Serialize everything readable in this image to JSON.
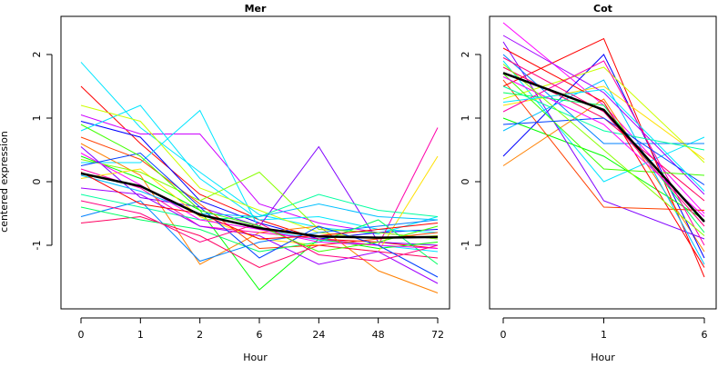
{
  "figure": {
    "ylabel": "centered expression"
  },
  "chart_data": [
    {
      "type": "line",
      "title": "Mer",
      "xlabel": "Hour",
      "ylabel": "centered expression",
      "categories": [
        "0",
        "1",
        "2",
        "6",
        "24",
        "48",
        "72"
      ],
      "yticks": [
        -1,
        0,
        1,
        2
      ],
      "ylim": [
        -2.0,
        2.6
      ],
      "mean_series": {
        "color": "#000000",
        "values": [
          0.13,
          -0.07,
          -0.52,
          -0.73,
          -0.86,
          -0.88,
          -0.87
        ]
      },
      "series": [
        {
          "color": "#00e5ff",
          "values": [
            1.88,
            0.85,
            0.15,
            -0.52,
            -0.72,
            -0.82,
            -0.55
          ]
        },
        {
          "color": "#ff0000",
          "values": [
            1.5,
            0.6,
            -0.2,
            -0.6,
            -0.9,
            -0.95,
            -1.05
          ]
        },
        {
          "color": "#cc00ff",
          "values": [
            1.05,
            0.75,
            0.75,
            -0.35,
            -0.65,
            -0.8,
            -0.9
          ]
        },
        {
          "color": "#0000ff",
          "values": [
            0.95,
            0.7,
            -0.3,
            -0.65,
            -0.9,
            -0.8,
            -0.75
          ]
        },
        {
          "color": "#00e5ff",
          "values": [
            0.8,
            1.2,
            0.05,
            -0.6,
            -0.55,
            -0.75,
            -0.8
          ]
        },
        {
          "color": "#00e5ff",
          "values": [
            0.3,
            0.3,
            1.12,
            -0.75,
            -0.92,
            -1.0,
            -1.1
          ]
        },
        {
          "color": "#ccff00",
          "values": [
            1.2,
            0.95,
            -0.1,
            -0.45,
            -0.8,
            -0.9,
            -0.85
          ]
        },
        {
          "color": "#8000ff",
          "values": [
            0.55,
            -0.25,
            -0.4,
            -0.7,
            0.55,
            -0.95,
            -1.0
          ]
        },
        {
          "color": "#00ff00",
          "values": [
            0.4,
            0.05,
            -0.45,
            -1.7,
            -0.9,
            -1.05,
            -0.95
          ]
        },
        {
          "color": "#ff00aa",
          "values": [
            0.2,
            -0.1,
            -0.7,
            -0.8,
            -0.9,
            -1.0,
            0.85
          ]
        },
        {
          "color": "#ff8000",
          "values": [
            0.6,
            0.1,
            -1.3,
            -0.8,
            -0.7,
            -1.4,
            -1.75
          ]
        },
        {
          "color": "#00ffa0",
          "values": [
            -0.2,
            -0.4,
            -0.6,
            -0.55,
            -0.2,
            -0.45,
            -0.55
          ]
        },
        {
          "color": "#ffe000",
          "values": [
            0.05,
            0.2,
            -0.55,
            -0.9,
            -1.0,
            -1.1,
            0.4
          ]
        },
        {
          "color": "#0080ff",
          "values": [
            -0.55,
            -0.3,
            -1.25,
            -0.95,
            -0.8,
            -0.7,
            -0.6
          ]
        },
        {
          "color": "#88ff00",
          "values": [
            0.35,
            0.15,
            -0.3,
            0.15,
            -0.75,
            -0.8,
            -0.9
          ]
        },
        {
          "color": "#ff0060",
          "values": [
            -0.65,
            -0.55,
            -0.85,
            -1.35,
            -1.0,
            -1.1,
            -1.2
          ]
        },
        {
          "color": "#00c0ff",
          "values": [
            0.1,
            -0.15,
            -0.5,
            -0.55,
            -0.35,
            -0.55,
            -0.6
          ]
        },
        {
          "color": "#a000ff",
          "values": [
            -0.1,
            -0.2,
            -0.7,
            -0.85,
            -1.3,
            -1.1,
            -1.6
          ]
        },
        {
          "color": "#ff4000",
          "values": [
            0.7,
            0.35,
            -0.35,
            -1.05,
            -1.0,
            -0.9,
            -0.8
          ]
        },
        {
          "color": "#00ff60",
          "values": [
            -0.4,
            -0.6,
            -0.75,
            -1.1,
            -0.95,
            -0.6,
            -1.3
          ]
        },
        {
          "color": "#ff00ff",
          "values": [
            0.45,
            -0.05,
            -0.6,
            -0.75,
            -0.95,
            -1.0,
            -1.05
          ]
        },
        {
          "color": "#0040ff",
          "values": [
            0.25,
            0.45,
            -0.4,
            -1.2,
            -0.7,
            -1.0,
            -1.5
          ]
        },
        {
          "color": "#ff0080",
          "values": [
            -0.3,
            -0.5,
            -0.95,
            -0.65,
            -1.15,
            -1.25,
            -1.0
          ]
        },
        {
          "color": "#40ff00",
          "values": [
            0.9,
            0.4,
            -0.45,
            -0.7,
            -1.1,
            -0.95,
            -0.7
          ]
        },
        {
          "color": "#ff0000",
          "values": [
            0.15,
            -0.35,
            -0.5,
            -0.9,
            -0.85,
            -0.75,
            -0.65
          ]
        }
      ]
    },
    {
      "type": "line",
      "title": "Cot",
      "xlabel": "Hour",
      "categories": [
        "0",
        "1",
        "6"
      ],
      "yticks": [
        -1,
        0,
        1,
        2
      ],
      "ylim": [
        -2.0,
        2.6
      ],
      "mean_series": {
        "color": "#000000",
        "values": [
          1.71,
          1.13,
          -0.63
        ]
      },
      "series": [
        {
          "color": "#ff00ff",
          "values": [
            2.5,
            1.2,
            -0.5
          ]
        },
        {
          "color": "#ff8000",
          "values": [
            0.25,
            1.3,
            -1.1
          ]
        },
        {
          "color": "#0000ff",
          "values": [
            0.4,
            2.0,
            -1.2
          ]
        },
        {
          "color": "#00e5ff",
          "values": [
            1.9,
            0.0,
            0.7
          ]
        },
        {
          "color": "#ff0000",
          "values": [
            1.5,
            2.25,
            -1.5
          ]
        },
        {
          "color": "#00ff00",
          "values": [
            1.0,
            0.4,
            -0.6
          ]
        },
        {
          "color": "#ccff00",
          "values": [
            1.3,
            1.8,
            0.3
          ]
        },
        {
          "color": "#8000ff",
          "values": [
            2.2,
            -0.3,
            -0.9
          ]
        },
        {
          "color": "#00c0ff",
          "values": [
            0.8,
            1.6,
            -1.3
          ]
        },
        {
          "color": "#ff0060",
          "values": [
            1.8,
            1.0,
            -0.3
          ]
        },
        {
          "color": "#ffe000",
          "values": [
            1.2,
            1.5,
            0.35
          ]
        },
        {
          "color": "#0080ff",
          "values": [
            2.0,
            0.6,
            0.6
          ]
        },
        {
          "color": "#ff4000",
          "values": [
            1.6,
            -0.4,
            -0.45
          ]
        },
        {
          "color": "#00ff60",
          "values": [
            1.4,
            1.2,
            -0.8
          ]
        },
        {
          "color": "#a000ff",
          "values": [
            2.3,
            1.4,
            -0.2
          ]
        },
        {
          "color": "#ff00aa",
          "values": [
            1.1,
            1.9,
            -1.0
          ]
        },
        {
          "color": "#40ff00",
          "values": [
            1.7,
            0.2,
            0.1
          ]
        },
        {
          "color": "#0040ff",
          "values": [
            0.9,
            1.0,
            -0.05
          ]
        },
        {
          "color": "#ff0080",
          "values": [
            1.95,
            1.1,
            -0.7
          ]
        },
        {
          "color": "#00ffa0",
          "values": [
            1.5,
            0.8,
            0.5
          ]
        },
        {
          "color": "#ff0000",
          "values": [
            2.1,
            1.25,
            -1.35
          ]
        },
        {
          "color": "#ff00ff",
          "values": [
            1.65,
            0.9,
            -0.55
          ]
        },
        {
          "color": "#00e5ff",
          "values": [
            1.25,
            1.45,
            -0.15
          ]
        },
        {
          "color": "#88ff00",
          "values": [
            1.85,
            0.5,
            -0.85
          ]
        }
      ]
    }
  ]
}
